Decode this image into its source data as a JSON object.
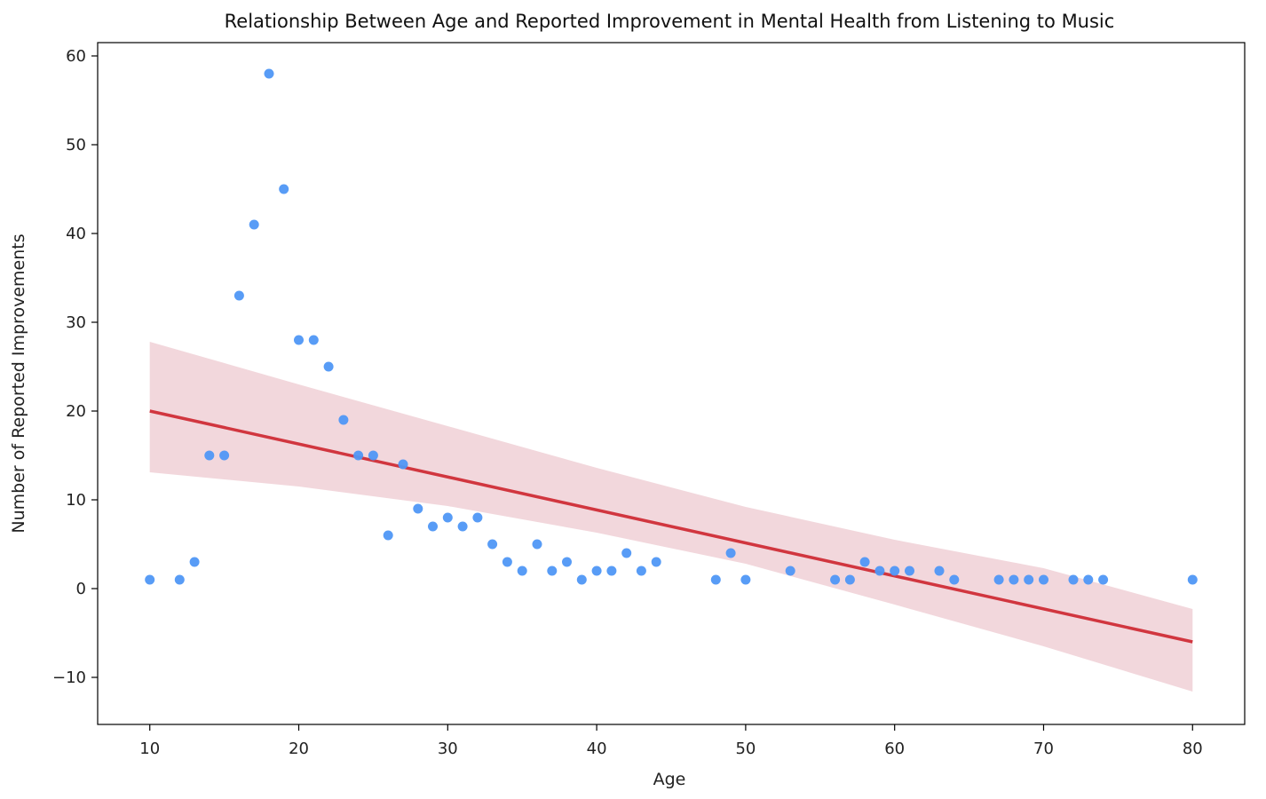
{
  "chart_data": {
    "type": "scatter",
    "title": "Relationship Between Age and Reported Improvement in Mental Health from Listening to Music",
    "xlabel": "Age",
    "ylabel": "Number of Reported Improvements",
    "xlim": [
      6.5,
      83.5
    ],
    "ylim": [
      -15.3,
      61.5
    ],
    "xticks": [
      10,
      20,
      30,
      40,
      50,
      60,
      70,
      80
    ],
    "yticks": [
      -10,
      0,
      10,
      20,
      30,
      40,
      50,
      60
    ],
    "grid": false,
    "legend": "none",
    "series": [
      {
        "points": [
          [
            10,
            1
          ],
          [
            12,
            1
          ],
          [
            13,
            3
          ],
          [
            14,
            15
          ],
          [
            15,
            15
          ],
          [
            16,
            33
          ],
          [
            17,
            41
          ],
          [
            18,
            58
          ],
          [
            19,
            45
          ],
          [
            20,
            28
          ],
          [
            21,
            28
          ],
          [
            22,
            25
          ],
          [
            23,
            19
          ],
          [
            24,
            15
          ],
          [
            25,
            15
          ],
          [
            26,
            6
          ],
          [
            27,
            14
          ],
          [
            28,
            9
          ],
          [
            29,
            7
          ],
          [
            30,
            8
          ],
          [
            31,
            7
          ],
          [
            32,
            8
          ],
          [
            33,
            5
          ],
          [
            34,
            3
          ],
          [
            35,
            2
          ],
          [
            36,
            5
          ],
          [
            37,
            2
          ],
          [
            38,
            3
          ],
          [
            39,
            1
          ],
          [
            40,
            2
          ],
          [
            41,
            2
          ],
          [
            42,
            4
          ],
          [
            43,
            2
          ],
          [
            44,
            3
          ],
          [
            48,
            1
          ],
          [
            49,
            4
          ],
          [
            50,
            1
          ],
          [
            53,
            2
          ],
          [
            56,
            1
          ],
          [
            57,
            1
          ],
          [
            58,
            3
          ],
          [
            59,
            2
          ],
          [
            60,
            2
          ],
          [
            61,
            2
          ],
          [
            63,
            2
          ],
          [
            64,
            1
          ],
          [
            67,
            1
          ],
          [
            68,
            1
          ],
          [
            69,
            1
          ],
          [
            70,
            1
          ],
          [
            72,
            1
          ],
          [
            73,
            1
          ],
          [
            74,
            1
          ],
          [
            80,
            1
          ]
        ],
        "color": "#4f97f5"
      }
    ],
    "regression": {
      "line": [
        [
          10,
          20
        ],
        [
          80,
          -6
        ]
      ],
      "ci_upper": [
        [
          10,
          27.8
        ],
        [
          20,
          23.0
        ],
        [
          30,
          18.3
        ],
        [
          40,
          13.6
        ],
        [
          50,
          9.2
        ],
        [
          60,
          5.5
        ],
        [
          70,
          2.3
        ],
        [
          80,
          -2.3
        ]
      ],
      "ci_lower": [
        [
          10,
          13.1
        ],
        [
          20,
          11.5
        ],
        [
          30,
          9.3
        ],
        [
          40,
          6.3
        ],
        [
          50,
          2.8
        ],
        [
          60,
          -1.8
        ],
        [
          70,
          -6.5
        ],
        [
          80,
          -11.6
        ]
      ],
      "line_color": "#d1363f",
      "band_color": "#f1d3d8"
    }
  }
}
